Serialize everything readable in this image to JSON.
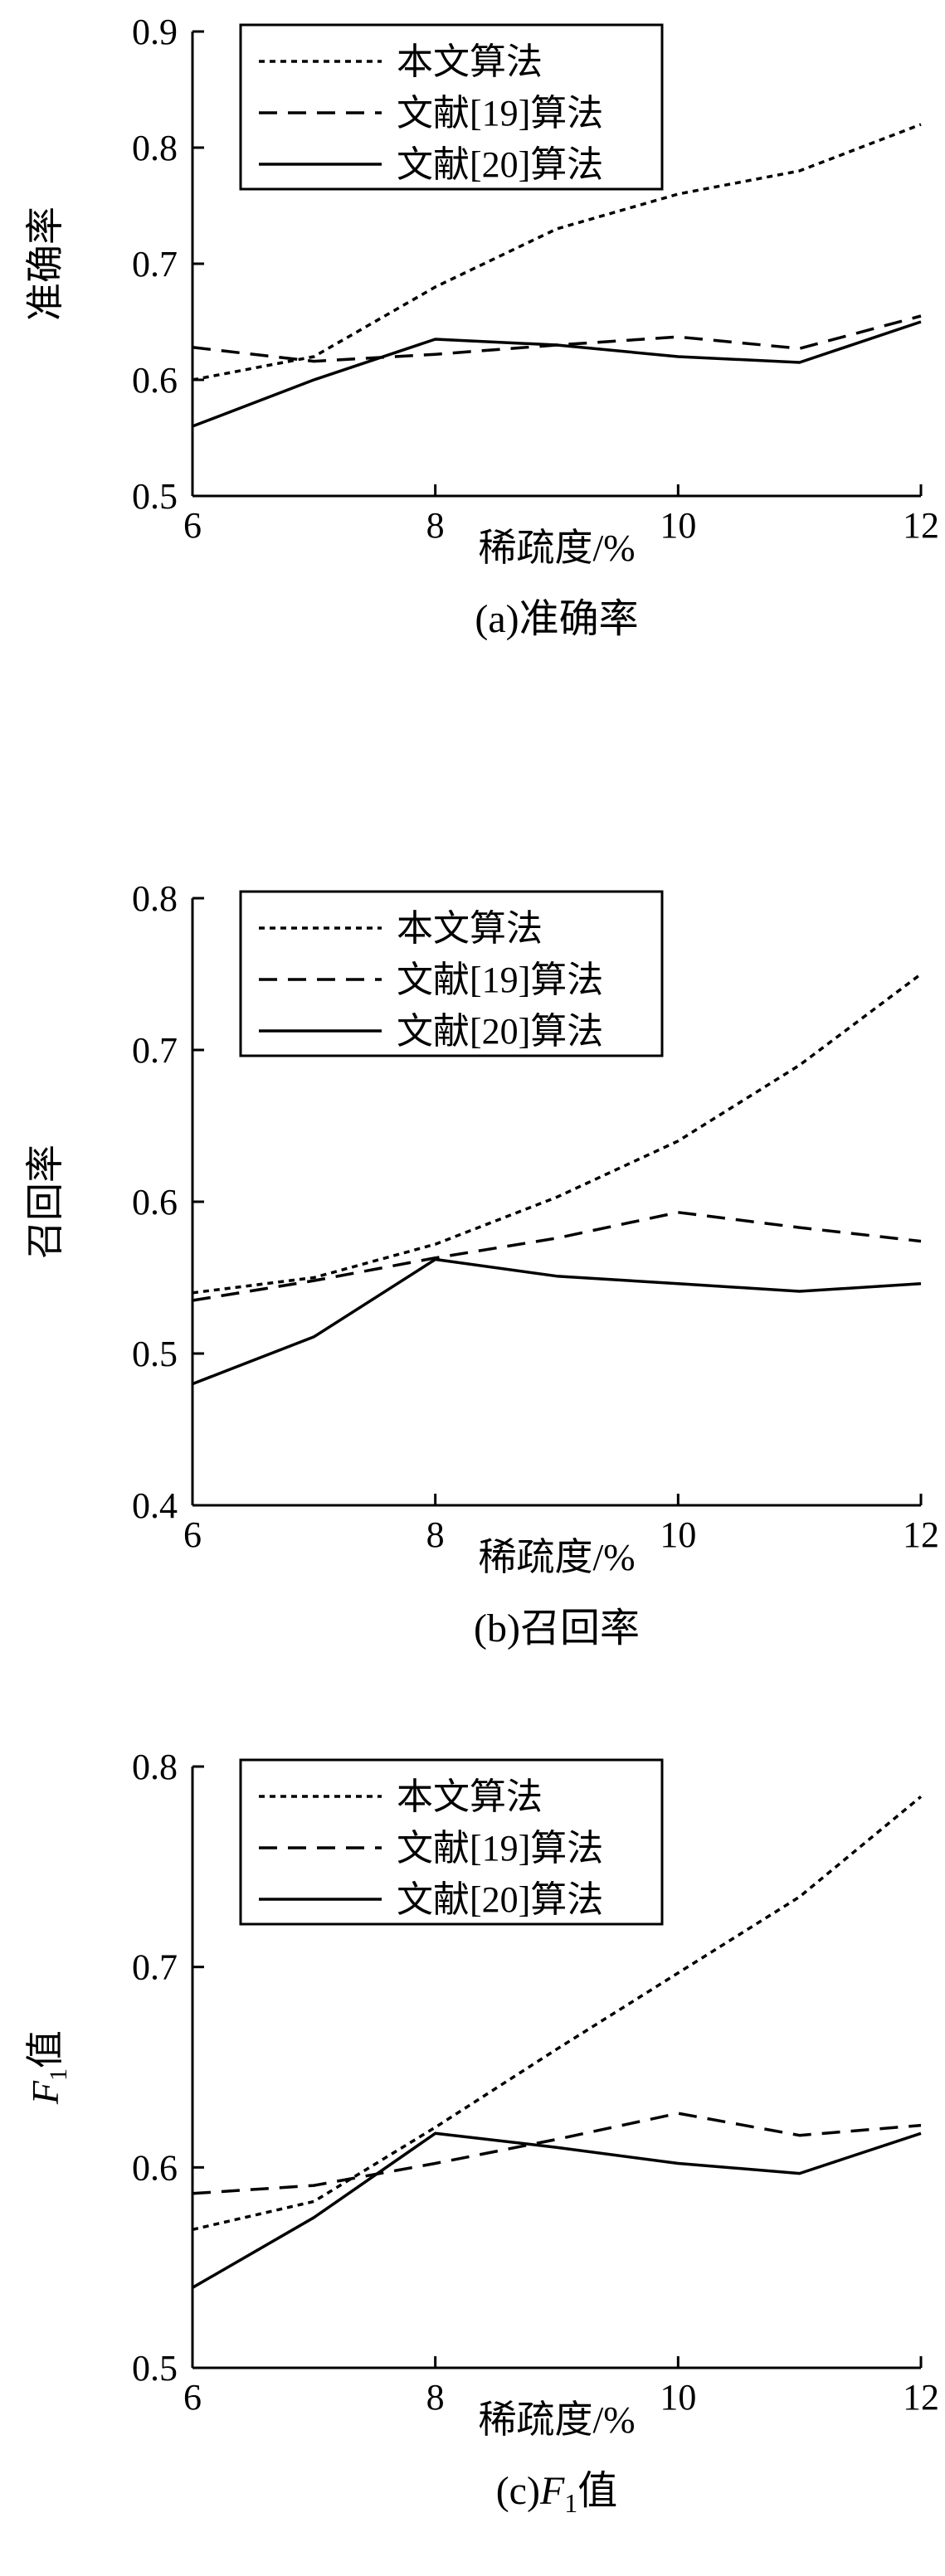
{
  "charts": [
    {
      "type": "line",
      "ylabel": "准确率",
      "xlabel": "稀疏度/%",
      "caption": "(a)准确率",
      "xlim": [
        6,
        12
      ],
      "ylim": [
        0.5,
        0.9
      ],
      "x_ticks": [
        6,
        8,
        10,
        12
      ],
      "y_ticks": [
        0.5,
        0.6,
        0.7,
        0.8,
        0.9
      ],
      "legend": {
        "position": "top-left",
        "entries": [
          "本文算法",
          "文献[19]算法",
          "文献[20]算法"
        ]
      },
      "series": [
        {
          "name": "本文算法",
          "style": "dotted",
          "x": [
            6,
            7,
            8,
            9,
            10,
            11,
            12
          ],
          "y": [
            0.6,
            0.62,
            0.68,
            0.73,
            0.76,
            0.78,
            0.82
          ]
        },
        {
          "name": "文献[19]算法",
          "style": "dashed",
          "x": [
            6,
            7,
            8,
            9,
            10,
            11,
            12
          ],
          "y": [
            0.628,
            0.616,
            0.622,
            0.63,
            0.637,
            0.627,
            0.655
          ]
        },
        {
          "name": "文献[20]算法",
          "style": "solid",
          "x": [
            6,
            7,
            8,
            9,
            10,
            11,
            12
          ],
          "y": [
            0.56,
            0.6,
            0.635,
            0.63,
            0.62,
            0.615,
            0.65
          ]
        }
      ]
    },
    {
      "type": "line",
      "ylabel": "召回率",
      "xlabel": "稀疏度/%",
      "caption": "(b)召回率",
      "xlim": [
        6,
        12
      ],
      "ylim": [
        0.4,
        0.8
      ],
      "x_ticks": [
        6,
        8,
        10,
        12
      ],
      "y_ticks": [
        0.4,
        0.5,
        0.6,
        0.7,
        0.8
      ],
      "legend": {
        "position": "top-left",
        "entries": [
          "本文算法",
          "文献[19]算法",
          "文献[20]算法"
        ]
      },
      "series": [
        {
          "name": "本文算法",
          "style": "dotted",
          "x": [
            6,
            7,
            8,
            9,
            10,
            11,
            12
          ],
          "y": [
            0.54,
            0.55,
            0.572,
            0.603,
            0.64,
            0.69,
            0.75
          ]
        },
        {
          "name": "文献[19]算法",
          "style": "dashed",
          "x": [
            6,
            7,
            8,
            9,
            10,
            11,
            12
          ],
          "y": [
            0.535,
            0.548,
            0.563,
            0.576,
            0.593,
            0.583,
            0.574
          ]
        },
        {
          "name": "文献[20]算法",
          "style": "solid",
          "x": [
            6,
            7,
            8,
            9,
            10,
            11,
            12
          ],
          "y": [
            0.48,
            0.511,
            0.562,
            0.551,
            0.546,
            0.541,
            0.546
          ]
        }
      ]
    },
    {
      "type": "line",
      "ylabel_italic": "F",
      "ylabel_sub": "1",
      "ylabel_rest": "值",
      "xlabel": "稀疏度/%",
      "caption_prefix": "(c)",
      "caption_italic": "F",
      "caption_sub": "1",
      "caption_rest": "值",
      "xlim": [
        6,
        12
      ],
      "ylim": [
        0.5,
        0.8
      ],
      "x_ticks": [
        6,
        8,
        10,
        12
      ],
      "y_ticks": [
        0.5,
        0.6,
        0.7,
        0.8
      ],
      "legend": {
        "position": "top-left",
        "entries": [
          "本文算法",
          "文献[19]算法",
          "文献[20]算法"
        ]
      },
      "series": [
        {
          "name": "本文算法",
          "style": "dotted",
          "x": [
            6,
            7,
            8,
            9,
            10,
            11,
            12
          ],
          "y": [
            0.569,
            0.583,
            0.62,
            0.659,
            0.697,
            0.735,
            0.785
          ]
        },
        {
          "name": "文献[19]算法",
          "style": "dashed",
          "x": [
            6,
            7,
            8,
            9,
            10,
            11,
            12
          ],
          "y": [
            0.587,
            0.591,
            0.602,
            0.614,
            0.627,
            0.616,
            0.621
          ]
        },
        {
          "name": "文献[20]算法",
          "style": "solid",
          "x": [
            6,
            7,
            8,
            9,
            10,
            11,
            12
          ],
          "y": [
            0.54,
            0.575,
            0.617,
            0.61,
            0.602,
            0.597,
            0.617
          ]
        }
      ]
    }
  ]
}
